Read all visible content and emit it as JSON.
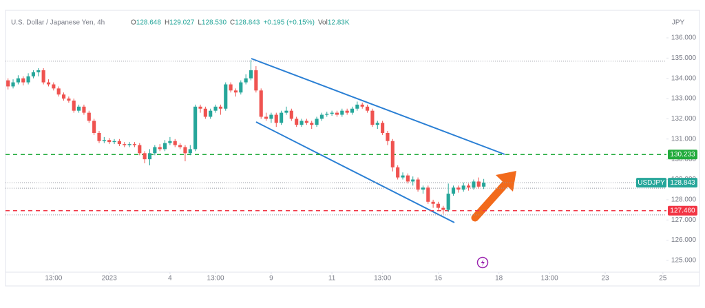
{
  "chart_data": {
    "type": "candlestick",
    "title": "U.S. Dollar / Japanese Yen, 4h",
    "legend": [
      {
        "key": "O",
        "value": "128.648"
      },
      {
        "key": "H",
        "value": "129.027"
      },
      {
        "key": "L",
        "value": "128.530"
      },
      {
        "key": "C",
        "value": "128.843"
      },
      {
        "key": "",
        "value": "+0.195 (+0.15%)"
      },
      {
        "key": "Vol",
        "value": "12.83K"
      }
    ],
    "currency": "JPY",
    "symbol": "USDJPY",
    "up_color": "#26a69a",
    "down_color": "#ef5350",
    "open": [
      133.9,
      133.6,
      133.8,
      134.0,
      133.8,
      134.1,
      134.3,
      134.4,
      133.8,
      133.7,
      133.5,
      133.2,
      133.0,
      132.9,
      132.4,
      132.6,
      132.3,
      131.9,
      131.3,
      130.9,
      130.95,
      130.85,
      130.9,
      130.75,
      130.7,
      130.75,
      130.7,
      130.3,
      130.0,
      130.3,
      130.6,
      130.5,
      130.8,
      130.9,
      130.7,
      130.6,
      130.3,
      130.5,
      132.6,
      132.5,
      132.1,
      132.4,
      132.6,
      132.5,
      133.7,
      133.4,
      133.3,
      133.8,
      134.0,
      134.4,
      133.4,
      132.1,
      132.0,
      132.2,
      131.8,
      132.3,
      132.4,
      132.0,
      131.7,
      131.9,
      131.8,
      131.7,
      132.0,
      132.2,
      132.25,
      132.3,
      132.2,
      132.4,
      132.3,
      132.5,
      132.7,
      132.6,
      132.4,
      131.7,
      131.8,
      131.3,
      130.9,
      129.6,
      129.1,
      129.2,
      128.9,
      129.0,
      128.5,
      128.6,
      127.9,
      127.8,
      127.6,
      127.5,
      128.3,
      128.6,
      128.5,
      128.7,
      128.6,
      128.9,
      128.648
    ],
    "high": [
      134.0,
      133.95,
      134.15,
      134.1,
      134.25,
      134.4,
      134.5,
      134.5,
      133.95,
      133.8,
      133.6,
      133.3,
      133.1,
      133.0,
      132.7,
      132.7,
      132.4,
      132.0,
      131.4,
      131.1,
      131.05,
      131.0,
      131.0,
      130.85,
      130.85,
      130.85,
      130.8,
      130.4,
      130.5,
      130.7,
      130.75,
      130.95,
      131.1,
      131.0,
      130.8,
      130.7,
      130.7,
      132.7,
      132.7,
      132.6,
      132.5,
      132.7,
      132.7,
      133.8,
      133.8,
      133.5,
      133.9,
      134.2,
      134.9,
      134.6,
      133.5,
      132.3,
      132.3,
      132.3,
      132.4,
      132.6,
      132.5,
      132.1,
      132.0,
      132.0,
      131.9,
      132.1,
      132.3,
      132.35,
      132.4,
      132.4,
      132.5,
      132.5,
      132.6,
      132.85,
      132.8,
      132.7,
      132.5,
      131.9,
      131.9,
      131.4,
      131.0,
      129.7,
      129.35,
      129.3,
      129.15,
      129.1,
      128.7,
      128.7,
      128.0,
      127.9,
      127.7,
      128.8,
      128.7,
      128.7,
      128.85,
      128.8,
      129.0,
      129.1,
      129.027
    ],
    "low": [
      133.45,
      133.5,
      133.7,
      133.65,
      133.7,
      134.0,
      134.1,
      133.7,
      133.6,
      133.4,
      133.1,
      132.9,
      132.8,
      132.3,
      132.3,
      132.2,
      131.8,
      131.2,
      130.8,
      130.8,
      130.75,
      130.75,
      130.65,
      130.6,
      130.6,
      130.6,
      130.2,
      129.8,
      129.7,
      130.2,
      130.4,
      130.4,
      130.7,
      130.6,
      130.5,
      129.9,
      130.2,
      130.4,
      132.3,
      132.0,
      132.0,
      132.3,
      132.2,
      132.4,
      133.3,
      133.1,
      133.2,
      133.7,
      133.9,
      133.3,
      132.0,
      131.9,
      131.8,
      131.6,
      131.7,
      132.2,
      131.9,
      131.6,
      131.6,
      131.7,
      131.5,
      131.6,
      131.9,
      132.1,
      132.15,
      132.1,
      132.1,
      132.2,
      132.2,
      132.4,
      132.5,
      132.3,
      131.6,
      131.5,
      131.2,
      130.7,
      129.4,
      129.0,
      129.0,
      128.8,
      128.7,
      128.4,
      128.3,
      127.8,
      127.6,
      127.5,
      127.3,
      127.4,
      128.2,
      128.35,
      128.4,
      128.45,
      128.5,
      128.55,
      128.53
    ],
    "close": [
      133.6,
      133.8,
      134.0,
      133.8,
      134.1,
      134.3,
      134.4,
      133.8,
      133.7,
      133.5,
      133.2,
      133.0,
      132.9,
      132.4,
      132.6,
      132.3,
      131.9,
      131.3,
      130.9,
      130.95,
      130.85,
      130.9,
      130.75,
      130.7,
      130.75,
      130.7,
      130.3,
      130.0,
      130.3,
      130.6,
      130.5,
      130.8,
      130.9,
      130.7,
      130.6,
      130.3,
      130.5,
      132.6,
      132.5,
      132.1,
      132.4,
      132.6,
      132.5,
      133.7,
      133.4,
      133.3,
      133.8,
      134.0,
      134.4,
      133.4,
      132.1,
      132.0,
      132.2,
      131.8,
      132.3,
      132.4,
      132.0,
      131.7,
      131.9,
      131.8,
      131.7,
      132.0,
      132.2,
      132.25,
      132.3,
      132.2,
      132.4,
      132.3,
      132.5,
      132.7,
      132.6,
      132.4,
      131.7,
      131.8,
      131.3,
      130.9,
      129.6,
      129.1,
      129.2,
      128.9,
      129.0,
      128.5,
      128.6,
      127.9,
      127.8,
      127.6,
      127.5,
      128.3,
      128.6,
      128.5,
      128.7,
      128.6,
      128.9,
      128.648,
      128.843
    ],
    "xlim": [
      -0.5,
      130.1
    ],
    "xticks": [
      {
        "value": 9,
        "label": "13:00"
      },
      {
        "value": 20,
        "label": "2023"
      },
      {
        "value": 32,
        "label": "4"
      },
      {
        "value": 41,
        "label": "13:00"
      },
      {
        "value": 52,
        "label": "9"
      },
      {
        "value": 64,
        "label": "11"
      },
      {
        "value": 74,
        "label": "13:00"
      },
      {
        "value": 85,
        "label": "16"
      },
      {
        "value": 97,
        "label": "18"
      },
      {
        "value": 107,
        "label": "13:00"
      },
      {
        "value": 118,
        "label": "23"
      },
      {
        "value": 129.4,
        "label": "25"
      }
    ],
    "ylim": [
      124.42,
      137.19
    ],
    "yticks": [
      {
        "value": 125,
        "label": "125.000"
      },
      {
        "value": 126,
        "label": "126.000"
      },
      {
        "value": 127,
        "label": "127.000"
      },
      {
        "value": 128,
        "label": "128.000"
      },
      {
        "value": 129,
        "label": "129.000"
      },
      {
        "value": 130,
        "label": "130.000"
      },
      {
        "value": 131,
        "label": "131.000"
      },
      {
        "value": 132,
        "label": "132.000"
      },
      {
        "value": 133,
        "label": "133.000"
      },
      {
        "value": 134,
        "label": "134.000"
      },
      {
        "value": 135,
        "label": "135.000"
      },
      {
        "value": 136,
        "label": "136.000"
      }
    ],
    "levels": [
      {
        "value": 130.233,
        "label": "130.233",
        "color": "#22ab3c"
      },
      {
        "value": 127.46,
        "label": "127.460",
        "color": "#f23645"
      }
    ],
    "price_line": {
      "value": 128.843,
      "label": "128.843",
      "color": "#26a69a"
    },
    "dotted_levels": [
      134.85,
      128.57,
      127.25
    ]
  }
}
